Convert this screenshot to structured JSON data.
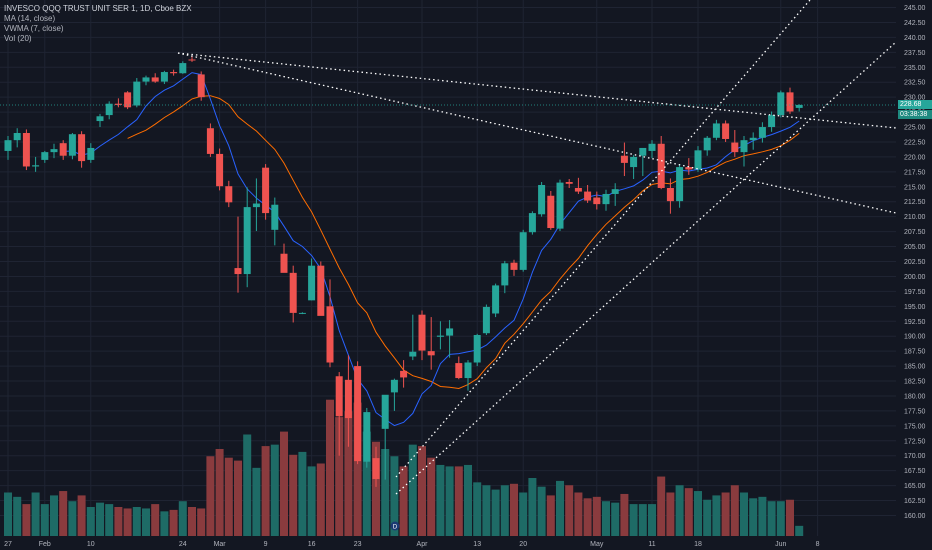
{
  "chart_data": {
    "type": "candlestick",
    "title": "INVESCO QQQ TRUST UNIT SER 1, 1D, Cboe BZX",
    "indicators": [
      "MA (14, close)",
      "VWMA (7, close)",
      "Vol (20)"
    ],
    "last_price": "228.68",
    "countdown": "03:38:38",
    "ylim": [
      158,
      247
    ],
    "y_ticks": [
      "245.00",
      "242.50",
      "240.00",
      "237.50",
      "235.00",
      "232.50",
      "230.00",
      "227.50",
      "225.00",
      "222.50",
      "220.00",
      "217.50",
      "215.00",
      "212.50",
      "210.00",
      "207.50",
      "205.00",
      "202.50",
      "200.00",
      "197.50",
      "195.00",
      "192.50",
      "190.00",
      "187.50",
      "185.00",
      "182.50",
      "180.00",
      "177.50",
      "175.00",
      "172.50",
      "170.00",
      "167.50",
      "165.00",
      "162.50",
      "160.00"
    ],
    "x_ticks": [
      {
        "label": "27",
        "i": 0
      },
      {
        "label": "Feb",
        "i": 4
      },
      {
        "label": "10",
        "i": 9
      },
      {
        "label": "24",
        "i": 19
      },
      {
        "label": "Mar",
        "i": 23
      },
      {
        "label": "9",
        "i": 28
      },
      {
        "label": "16",
        "i": 33
      },
      {
        "label": "23",
        "i": 38
      },
      {
        "label": "Apr",
        "i": 45
      },
      {
        "label": "13",
        "i": 51
      },
      {
        "label": "20",
        "i": 56
      },
      {
        "label": "May",
        "i": 64
      },
      {
        "label": "11",
        "i": 70
      },
      {
        "label": "18",
        "i": 75
      },
      {
        "label": "Jun",
        "i": 84
      },
      {
        "label": "8",
        "i": 88
      }
    ],
    "candles": [
      [
        221.0,
        223.5,
        219.5,
        222.8
      ],
      [
        222.8,
        224.8,
        221.6,
        224.0
      ],
      [
        224.0,
        224.6,
        217.8,
        218.4
      ],
      [
        218.4,
        220.0,
        217.5,
        218.6
      ],
      [
        219.5,
        221.0,
        219.0,
        220.8
      ],
      [
        220.8,
        222.2,
        219.8,
        221.3
      ],
      [
        222.3,
        222.8,
        219.5,
        220.2
      ],
      [
        220.2,
        224.0,
        219.6,
        223.8
      ],
      [
        223.8,
        224.3,
        218.2,
        219.3
      ],
      [
        219.5,
        222.3,
        219.0,
        221.5
      ],
      [
        226.0,
        227.2,
        225.0,
        226.8
      ],
      [
        227.0,
        229.3,
        226.3,
        228.9
      ],
      [
        228.9,
        229.8,
        228.3,
        228.7
      ],
      [
        230.8,
        231.0,
        228.0,
        228.3
      ],
      [
        228.6,
        233.2,
        228.3,
        232.6
      ],
      [
        232.6,
        233.6,
        232.0,
        233.3
      ],
      [
        233.3,
        234.0,
        232.4,
        232.6
      ],
      [
        232.6,
        234.4,
        232.2,
        234.2
      ],
      [
        234.2,
        234.6,
        233.6,
        234.0
      ],
      [
        234.0,
        236.0,
        233.9,
        235.7
      ],
      [
        236.3,
        236.9,
        235.9,
        236.2
      ],
      [
        233.8,
        234.3,
        229.4,
        230.0
      ],
      [
        224.8,
        225.6,
        220.0,
        220.5
      ],
      [
        220.5,
        221.4,
        214.4,
        215.1
      ],
      [
        215.1,
        216.0,
        211.6,
        212.4
      ],
      [
        201.4,
        210.0,
        197.3,
        200.4
      ],
      [
        200.4,
        214.9,
        198.2,
        211.6
      ],
      [
        211.6,
        216.4,
        207.6,
        212.2
      ],
      [
        218.2,
        218.8,
        209.5,
        210.6
      ],
      [
        207.8,
        213.2,
        205.2,
        212.0
      ],
      [
        203.8,
        205.5,
        201.2,
        200.6
      ],
      [
        200.6,
        201.8,
        192.3,
        193.9
      ],
      [
        193.8,
        194.0,
        193.7,
        193.9
      ],
      [
        196.0,
        203.0,
        196.0,
        201.8
      ],
      [
        201.8,
        202.5,
        194.0,
        193.4
      ],
      [
        195.0,
        199.5,
        184.8,
        185.6
      ],
      [
        183.3,
        184.0,
        170.0,
        176.6
      ],
      [
        182.7,
        186.8,
        171.5,
        176.3
      ],
      [
        185.0,
        185.8,
        168.6,
        169.1
      ],
      [
        169.0,
        178.0,
        168.0,
        177.3
      ],
      [
        169.6,
        171.5,
        164.8,
        166.1
      ],
      [
        174.5,
        180.0,
        166.0,
        180.2
      ],
      [
        180.6,
        182.9,
        177.5,
        182.7
      ],
      [
        184.2,
        186.0,
        181.4,
        183.1
      ],
      [
        186.6,
        193.6,
        186.0,
        187.4
      ],
      [
        193.6,
        194.3,
        186.0,
        187.6
      ],
      [
        187.5,
        193.2,
        184.4,
        186.8
      ],
      [
        189.9,
        192.5,
        187.8,
        190.1
      ],
      [
        190.1,
        192.7,
        186.4,
        191.3
      ],
      [
        185.5,
        186.6,
        182.8,
        183.0
      ],
      [
        183.0,
        186.0,
        180.9,
        185.6
      ],
      [
        185.6,
        190.4,
        185.0,
        190.2
      ],
      [
        190.5,
        195.3,
        190.2,
        194.9
      ],
      [
        193.8,
        198.8,
        193.2,
        198.5
      ],
      [
        198.5,
        202.6,
        197.2,
        202.2
      ],
      [
        202.3,
        202.8,
        200.1,
        201.1
      ],
      [
        201.1,
        207.8,
        200.8,
        207.4
      ],
      [
        207.4,
        210.9,
        207.0,
        210.6
      ],
      [
        210.4,
        215.8,
        210.0,
        215.3
      ],
      [
        213.5,
        214.3,
        207.8,
        208.1
      ],
      [
        208.0,
        216.2,
        207.6,
        215.7
      ],
      [
        215.8,
        216.3,
        214.8,
        215.5
      ],
      [
        214.8,
        216.5,
        213.8,
        214.2
      ],
      [
        214.2,
        215.3,
        212.3,
        212.7
      ],
      [
        213.2,
        214.2,
        211.2,
        212.1
      ],
      [
        212.1,
        214.5,
        211.0,
        213.8
      ],
      [
        213.8,
        215.6,
        211.8,
        214.6
      ],
      [
        220.2,
        222.4,
        216.8,
        219.0
      ],
      [
        218.3,
        220.3,
        216.3,
        220.0
      ],
      [
        220.2,
        221.0,
        216.8,
        221.5
      ],
      [
        221.0,
        222.8,
        219.8,
        222.2
      ],
      [
        222.2,
        223.5,
        214.6,
        214.8
      ],
      [
        214.8,
        216.4,
        210.5,
        212.6
      ],
      [
        212.6,
        218.8,
        211.5,
        218.3
      ],
      [
        218.3,
        219.8,
        217.0,
        217.9
      ],
      [
        217.9,
        221.8,
        217.5,
        221.1
      ],
      [
        221.1,
        223.5,
        220.2,
        223.2
      ],
      [
        223.2,
        226.2,
        222.8,
        225.6
      ],
      [
        225.6,
        226.1,
        222.5,
        223.0
      ],
      [
        222.4,
        224.5,
        220.0,
        220.8
      ],
      [
        220.8,
        223.5,
        218.4,
        222.8
      ],
      [
        222.8,
        224.1,
        221.2,
        223.2
      ],
      [
        223.2,
        225.8,
        222.4,
        225.0
      ],
      [
        225.0,
        227.6,
        224.2,
        227.0
      ],
      [
        227.0,
        231.1,
        226.6,
        230.8
      ],
      [
        230.8,
        231.6,
        227.2,
        227.6
      ],
      [
        228.2,
        228.8,
        227.6,
        228.7
      ]
    ],
    "volume_rel": [
      0.3,
      0.27,
      0.22,
      0.3,
      0.22,
      0.28,
      0.31,
      0.24,
      0.28,
      0.2,
      0.23,
      0.22,
      0.2,
      0.19,
      0.2,
      0.19,
      0.22,
      0.17,
      0.18,
      0.24,
      0.2,
      0.19,
      0.55,
      0.6,
      0.54,
      0.52,
      0.7,
      0.47,
      0.62,
      0.63,
      0.72,
      0.56,
      0.58,
      0.48,
      0.5,
      0.94,
      0.82,
      0.86,
      0.92,
      0.72,
      0.65,
      0.6,
      0.55,
      0.48,
      0.63,
      0.62,
      0.54,
      0.49,
      0.48,
      0.48,
      0.49,
      0.37,
      0.35,
      0.32,
      0.35,
      0.36,
      0.3,
      0.4,
      0.34,
      0.28,
      0.38,
      0.35,
      0.3,
      0.26,
      0.27,
      0.24,
      0.23,
      0.29,
      0.22,
      0.22,
      0.22,
      0.41,
      0.3,
      0.35,
      0.33,
      0.31,
      0.25,
      0.28,
      0.3,
      0.35,
      0.3,
      0.26,
      0.27,
      0.24,
      0.24,
      0.25,
      0.07
    ],
    "ma14": [
      null,
      null,
      null,
      null,
      null,
      null,
      null,
      null,
      null,
      null,
      null,
      null,
      null,
      null,
      null,
      null,
      null,
      null,
      null,
      null,
      null,
      null,
      null,
      null,
      null,
      null,
      null,
      null,
      null,
      null,
      null,
      null,
      null,
      null,
      null,
      null,
      null,
      null,
      null,
      null,
      null,
      null,
      null,
      null,
      null,
      null,
      null,
      null,
      null,
      null,
      null,
      null,
      null,
      null,
      null,
      null,
      null,
      null,
      null,
      null,
      null,
      null,
      null,
      null,
      null,
      null,
      null,
      null,
      null,
      null,
      null,
      null,
      null,
      null,
      null,
      null,
      null,
      null,
      null,
      null,
      null,
      null,
      null,
      null,
      null,
      null,
      null
    ],
    "colors": {
      "up": "#26a69a",
      "down": "#ef5350",
      "up_volume": "#1e6b66",
      "down_volume": "#8a3b3e",
      "ma": "#2962ff",
      "vwma": "#ff6d00",
      "trendline": "#ffffff",
      "grid": "#1f2433",
      "axis_text": "#b2b5be"
    }
  }
}
